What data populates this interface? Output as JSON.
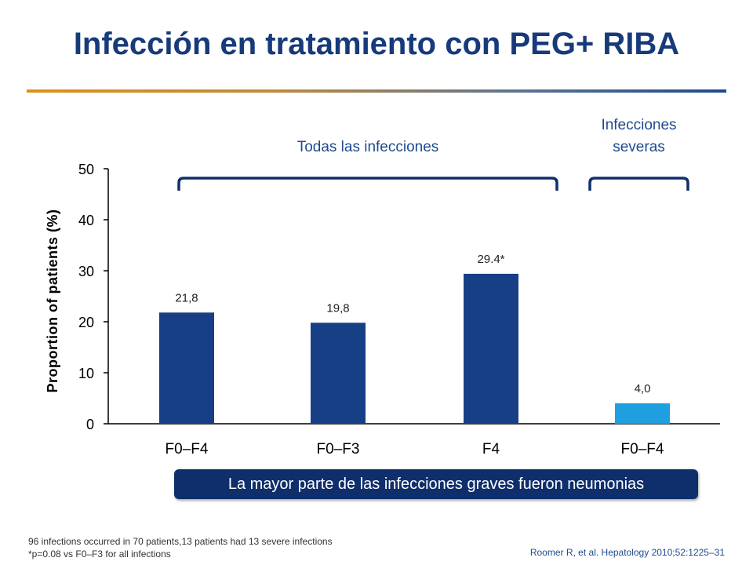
{
  "slide": {
    "title": "Infección en tratamiento con PEG+ RIBA",
    "callout": "La mayor parte de las infecciones graves fueron neumonias",
    "footnotes": [
      "96 infections occurred in 70 patients,13 patients had 13 severe infections",
      "*p=0.08 vs F0–F3 for all infections"
    ],
    "citation": "Roomer R, et al. Hepatology 2010;52:1225–31"
  },
  "chart_data": {
    "type": "bar",
    "title": "",
    "xlabel": "",
    "ylabel": "Proportion of patients (%)",
    "ylim": [
      0,
      50
    ],
    "yticks": [
      0,
      10,
      20,
      30,
      40,
      50
    ],
    "grid": false,
    "groups": [
      {
        "label": "Todas las infecciones",
        "categories": [
          "F0–F4",
          "F0–F3",
          "F4"
        ]
      },
      {
        "label": "Infecciones severas",
        "categories": [
          "F0–F4"
        ]
      }
    ],
    "categories": [
      "F0–F4",
      "F0–F3",
      "F4",
      "F0–F4"
    ],
    "values": [
      21.8,
      19.8,
      29.4,
      4.0
    ],
    "data_labels": [
      "21,8",
      "19,8",
      "29.4*",
      "4,0"
    ],
    "colors": [
      "#173f86",
      "#173f86",
      "#173f86",
      "#1e9fe0"
    ]
  }
}
